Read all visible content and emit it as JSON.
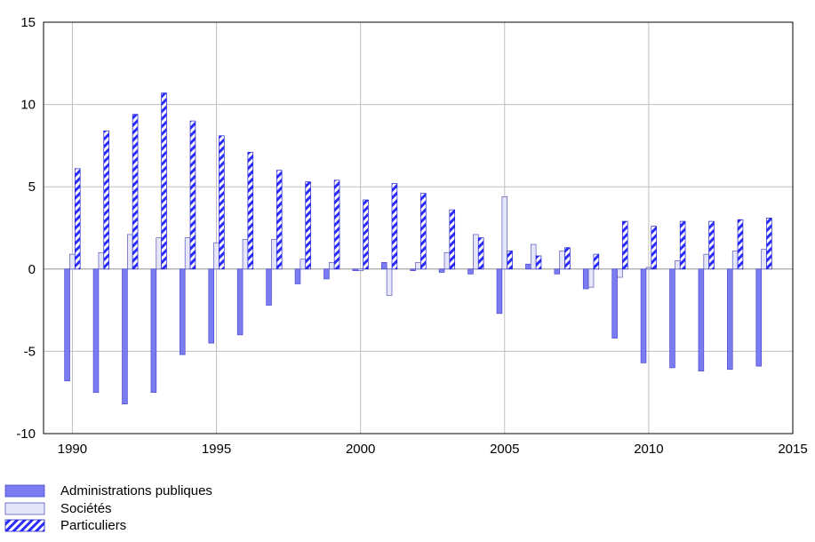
{
  "chart_data": {
    "type": "bar",
    "title": "",
    "xlabel": "",
    "ylabel": "",
    "xlim": [
      1989,
      2015
    ],
    "ylim": [
      -10,
      15
    ],
    "x_ticks": [
      1990,
      1995,
      2000,
      2005,
      2010,
      2015
    ],
    "y_ticks": [
      -10,
      -5,
      0,
      5,
      10,
      15
    ],
    "grid": true,
    "legend_position": "bottom-left",
    "colors": {
      "administrations": "#7b7bf2",
      "societes": "#e6e6fa",
      "particuliers_fill": "#2b2bff",
      "particuliers_stripe": "#ffffff",
      "axis": "#000000",
      "grid": "#bfbfbf"
    },
    "categories": [
      1990,
      1991,
      1992,
      1993,
      1994,
      1995,
      1996,
      1997,
      1998,
      1999,
      2000,
      2001,
      2002,
      2003,
      2004,
      2005,
      2006,
      2007,
      2008,
      2009,
      2010,
      2011,
      2012,
      2013,
      2014
    ],
    "series": [
      {
        "name": "Administrations publiques",
        "pattern": "solid",
        "values": [
          -6.8,
          -7.5,
          -8.2,
          -7.5,
          -5.2,
          -4.5,
          -4.0,
          -2.2,
          -0.9,
          -0.6,
          -0.1,
          0.4,
          -0.1,
          -0.2,
          -0.3,
          -2.7,
          0.3,
          -0.3,
          -1.2,
          -4.2,
          -5.7,
          -6.0,
          -6.2,
          -6.1,
          -5.9
        ]
      },
      {
        "name": "Sociétés",
        "pattern": "light",
        "values": [
          0.9,
          1.0,
          2.1,
          1.9,
          1.9,
          1.6,
          1.8,
          1.8,
          0.6,
          0.4,
          -0.1,
          -1.6,
          0.4,
          1.0,
          2.1,
          4.4,
          1.5,
          1.1,
          -1.1,
          -0.5,
          0.1,
          0.5,
          0.9,
          1.1,
          1.2
        ]
      },
      {
        "name": "Particuliers",
        "pattern": "striped",
        "values": [
          6.1,
          8.4,
          9.4,
          10.7,
          9.0,
          8.1,
          7.1,
          6.0,
          5.3,
          5.4,
          4.2,
          5.2,
          4.6,
          3.6,
          1.9,
          1.1,
          0.8,
          1.3,
          0.9,
          2.9,
          2.6,
          2.9,
          2.9,
          3.0,
          3.1
        ]
      }
    ]
  }
}
